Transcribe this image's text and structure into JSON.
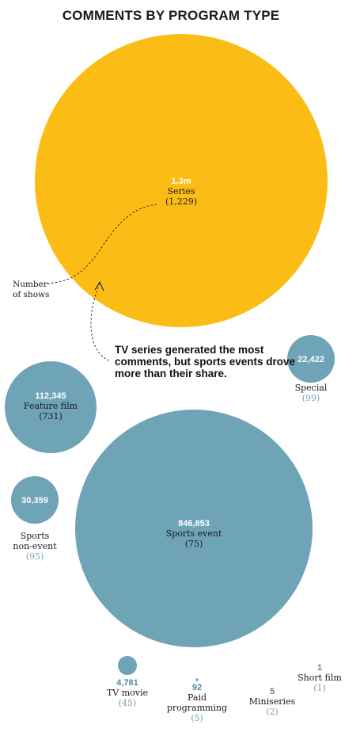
{
  "chart_data": {
    "type": "bubble",
    "title": "COMMENTS BY PROGRAM TYPE",
    "annotation": [
      "TV series generated the most",
      "comments, but sports events drove",
      "more than their share."
    ],
    "legend_label": [
      "Number",
      "of shows"
    ],
    "items": [
      {
        "value_text": "1.3m",
        "value": 1300000,
        "label": [
          "Series"
        ],
        "count_text": "(1,229)",
        "count": 1229,
        "color": "#fbbd15"
      },
      {
        "value_text": "22,422",
        "value": 22422,
        "label": [
          "Special"
        ],
        "count_text": "(99)",
        "count": 99,
        "color": "#6fa4b6"
      },
      {
        "value_text": "112,345",
        "value": 112345,
        "label": [
          "Feature film"
        ],
        "count_text": "(731)",
        "count": 731,
        "color": "#6fa4b6"
      },
      {
        "value_text": "30,359",
        "value": 30359,
        "label": [
          "Sports",
          "non-event"
        ],
        "count_text": "(95)",
        "count": 95,
        "color": "#6fa4b6"
      },
      {
        "value_text": "846,853",
        "value": 846853,
        "label": [
          "Sports event"
        ],
        "count_text": "(75)",
        "count": 75,
        "color": "#6fa4b6"
      },
      {
        "value_text": "4,781",
        "value": 4781,
        "label": [
          "TV movie"
        ],
        "count_text": "(45)",
        "count": 45,
        "color": "#6fa4b6"
      },
      {
        "value_text": "92",
        "value": 92,
        "label": [
          "Paid",
          "programming"
        ],
        "count_text": "(5)",
        "count": 5,
        "color": "#6fa4b6"
      },
      {
        "value_text": "5",
        "value": 5,
        "label": [
          "Miniseries"
        ],
        "count_text": "(2)",
        "count": 2,
        "color": "#6fa4b6"
      },
      {
        "value_text": "1",
        "value": 1,
        "label": [
          "Short film"
        ],
        "count_text": "(1)",
        "count": 1,
        "color": "#6fa4b6"
      }
    ],
    "colors": {
      "series": "#fbbd15",
      "other": "#6fa4b6",
      "value_blue": "#4f8aa3",
      "count_blue": "#6fa4b6",
      "text": "#1a1a1a"
    }
  }
}
